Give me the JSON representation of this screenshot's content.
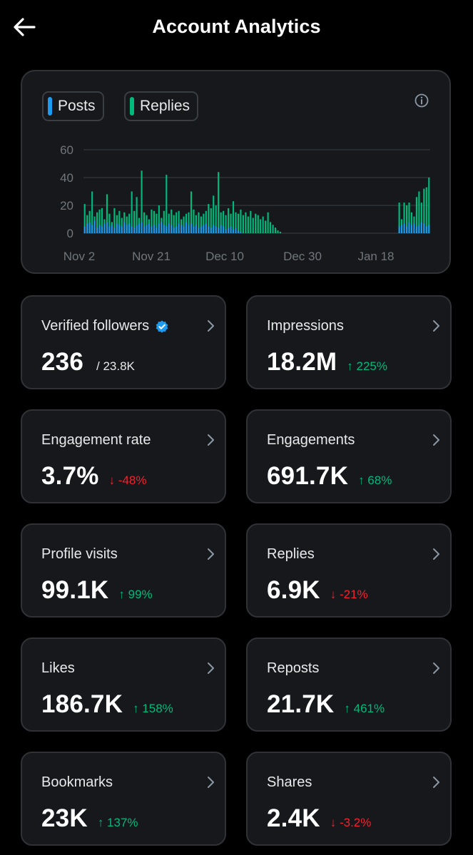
{
  "header": {
    "title": "Account Analytics"
  },
  "colors": {
    "posts": "#1d9bf0",
    "replies": "#00ba7c",
    "up": "#00ba7c",
    "down": "#f4212e"
  },
  "legend": [
    {
      "label": "Posts",
      "color": "#1d9bf0"
    },
    {
      "label": "Replies",
      "color": "#00ba7c"
    }
  ],
  "chart_data": {
    "type": "bar",
    "title": "",
    "xlabel": "",
    "ylabel": "",
    "ylim": [
      0,
      60
    ],
    "y_ticks": [
      0,
      20,
      40,
      60
    ],
    "x_ticks": [
      "Nov 2",
      "Nov 21",
      "Dec 10",
      "Dec 30",
      "Jan 18"
    ],
    "grid": true,
    "series": [
      {
        "name": "Posts",
        "color": "#1d9bf0",
        "values": [
          5,
          7,
          8,
          6,
          9,
          4,
          6,
          5,
          7,
          8,
          5,
          6,
          4,
          7,
          6,
          5,
          8,
          6,
          7,
          5,
          4,
          6,
          7,
          8,
          5,
          6,
          7,
          5,
          6,
          4,
          7,
          8,
          6,
          5,
          7,
          6,
          4,
          5,
          7,
          6,
          5,
          8,
          6,
          7,
          5,
          6,
          4,
          5,
          6,
          7,
          5,
          4,
          6,
          5,
          4,
          6,
          5,
          3,
          4,
          5,
          3,
          4,
          2,
          1,
          0,
          0,
          0,
          0,
          0,
          0,
          0,
          0,
          0,
          0,
          0,
          0,
          0,
          0,
          0,
          0,
          0,
          0,
          0,
          0,
          0,
          0,
          0,
          0,
          0,
          0,
          0,
          0,
          0,
          0,
          0,
          0,
          0,
          0,
          0,
          0,
          0,
          0,
          0,
          0,
          0,
          0,
          0,
          0,
          0,
          0,
          0,
          0,
          0,
          0,
          0,
          0,
          0,
          0,
          0,
          0,
          0,
          0,
          0,
          0,
          0,
          0,
          0,
          5,
          6,
          7,
          5,
          8,
          6,
          7,
          5,
          6,
          8,
          7,
          5,
          6
        ]
      },
      {
        "name": "Replies",
        "color": "#00ba7c",
        "values": [
          21,
          13,
          16,
          30,
          12,
          15,
          17,
          18,
          10,
          28,
          14,
          8,
          18,
          13,
          16,
          11,
          15,
          12,
          14,
          30,
          16,
          26,
          11,
          45,
          15,
          13,
          10,
          17,
          16,
          14,
          20,
          11,
          16,
          42,
          14,
          17,
          13,
          15,
          16,
          10,
          12,
          14,
          15,
          30,
          17,
          13,
          15,
          12,
          14,
          16,
          21,
          18,
          27,
          20,
          44,
          15,
          16,
          13,
          18,
          14,
          23,
          15,
          14,
          17,
          13,
          15,
          12,
          16,
          11,
          14,
          13,
          10,
          12,
          9,
          15,
          8,
          6,
          4,
          2,
          1,
          0,
          0,
          0,
          0,
          0,
          0,
          0,
          0,
          0,
          0,
          0,
          0,
          0,
          0,
          0,
          0,
          0,
          0,
          0,
          0,
          0,
          0,
          0,
          0,
          0,
          0,
          0,
          0,
          0,
          0,
          0,
          0,
          0,
          0,
          0,
          0,
          0,
          0,
          0,
          0,
          0,
          0,
          0,
          0,
          0,
          0,
          0,
          22,
          10,
          22,
          20,
          22,
          15,
          12,
          26,
          30,
          22,
          32,
          33,
          40
        ]
      }
    ]
  },
  "cards": [
    {
      "label": "Verified followers",
      "value": "236",
      "sub": "/ 23.8K",
      "verified": true
    },
    {
      "label": "Impressions",
      "value": "18.2M",
      "delta": "↑ 225%",
      "dir": "up"
    },
    {
      "label": "Engagement rate",
      "value": "3.7%",
      "delta": "↓ -48%",
      "dir": "down"
    },
    {
      "label": "Engagements",
      "value": "691.7K",
      "delta": "↑ 68%",
      "dir": "up"
    },
    {
      "label": "Profile visits",
      "value": "99.1K",
      "delta": "↑ 99%",
      "dir": "up"
    },
    {
      "label": "Replies",
      "value": "6.9K",
      "delta": "↓ -21%",
      "dir": "down"
    },
    {
      "label": "Likes",
      "value": "186.7K",
      "delta": "↑ 158%",
      "dir": "up"
    },
    {
      "label": "Reposts",
      "value": "21.7K",
      "delta": "↑ 461%",
      "dir": "up"
    },
    {
      "label": "Bookmarks",
      "value": "23K",
      "delta": "↑ 137%",
      "dir": "up"
    },
    {
      "label": "Shares",
      "value": "2.4K",
      "delta": "↓ -3.2%",
      "dir": "down"
    }
  ]
}
